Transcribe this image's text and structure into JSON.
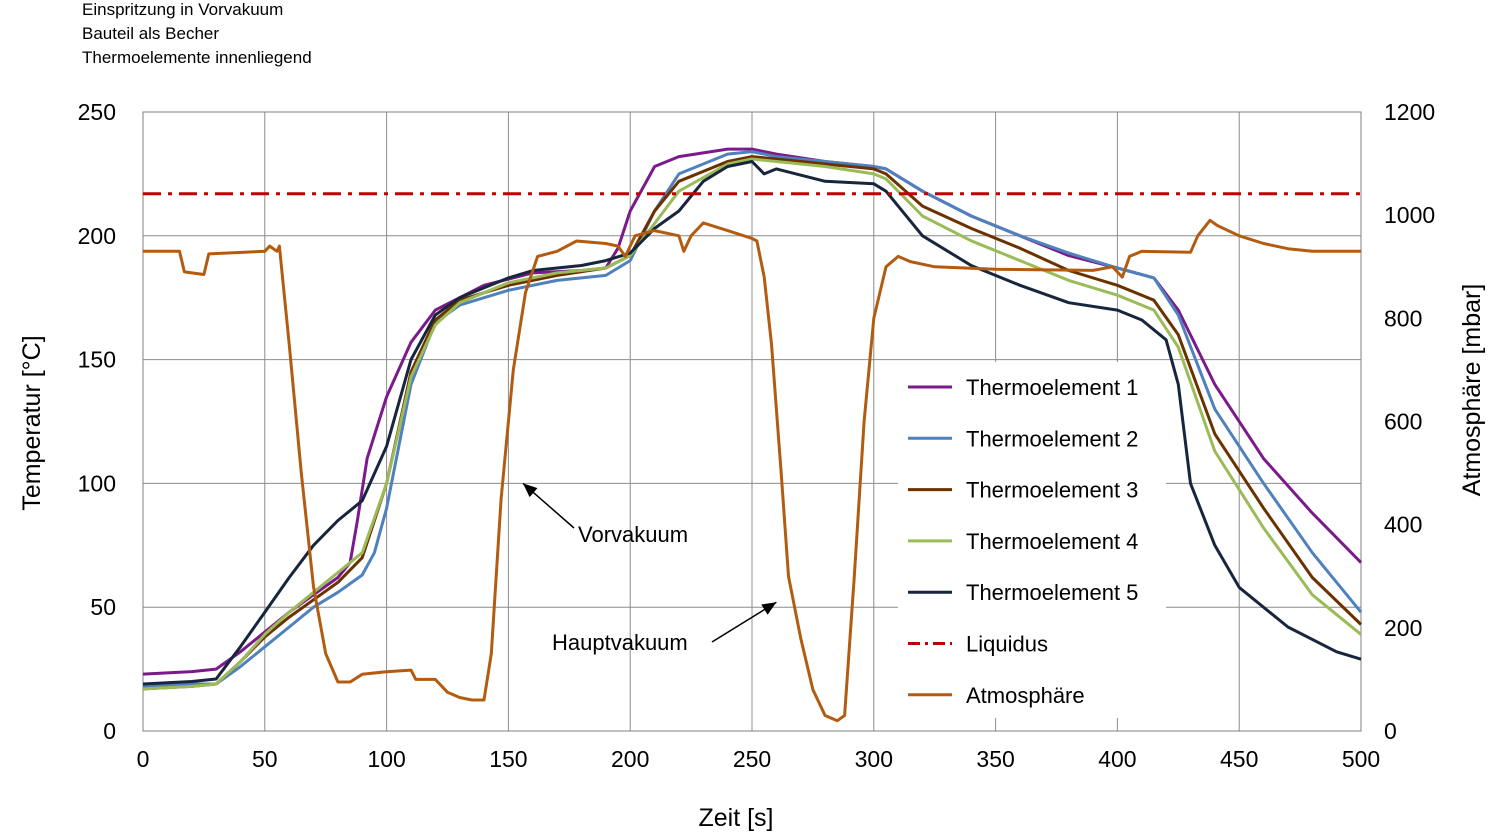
{
  "notes": [
    "Einspritzung in Vorvakuum",
    "Bauteil als Becher",
    "Thermoelemente innenliegend"
  ],
  "chart_data": {
    "type": "line",
    "xlabel": "Zeit [s]",
    "ylabel": "Temperatur [°C]",
    "y2label": "Atmosphäre [mbar]",
    "xlim": [
      0,
      500
    ],
    "ylim": [
      0,
      250
    ],
    "y2lim": [
      0,
      1200
    ],
    "xticks": [
      0,
      50,
      100,
      150,
      200,
      250,
      300,
      350,
      400,
      450,
      500
    ],
    "yticks": [
      0,
      50,
      100,
      150,
      200,
      250
    ],
    "y2ticks": [
      0,
      200,
      400,
      600,
      800,
      1000,
      1200
    ],
    "grid": true,
    "legend_position": "right",
    "series": [
      {
        "name": "Thermoelement 1",
        "color": "#7b1a8a",
        "axis": "left",
        "style": "solid",
        "points": [
          [
            0,
            23
          ],
          [
            20,
            24
          ],
          [
            30,
            25
          ],
          [
            40,
            32
          ],
          [
            50,
            40
          ],
          [
            60,
            48
          ],
          [
            70,
            55
          ],
          [
            80,
            62
          ],
          [
            85,
            68
          ],
          [
            88,
            85
          ],
          [
            92,
            110
          ],
          [
            100,
            135
          ],
          [
            110,
            157
          ],
          [
            120,
            170
          ],
          [
            140,
            180
          ],
          [
            160,
            185
          ],
          [
            180,
            186
          ],
          [
            190,
            187
          ],
          [
            195,
            195
          ],
          [
            200,
            210
          ],
          [
            210,
            228
          ],
          [
            220,
            232
          ],
          [
            240,
            235
          ],
          [
            250,
            235
          ],
          [
            260,
            233
          ],
          [
            280,
            230
          ],
          [
            300,
            228
          ],
          [
            305,
            227
          ],
          [
            320,
            218
          ],
          [
            340,
            208
          ],
          [
            360,
            200
          ],
          [
            380,
            192
          ],
          [
            400,
            187
          ],
          [
            415,
            183
          ],
          [
            425,
            170
          ],
          [
            440,
            140
          ],
          [
            460,
            110
          ],
          [
            480,
            88
          ],
          [
            500,
            68
          ]
        ]
      },
      {
        "name": "Thermoelement 2",
        "color": "#4f81bd",
        "axis": "left",
        "style": "solid",
        "points": [
          [
            0,
            18
          ],
          [
            20,
            19
          ],
          [
            30,
            19
          ],
          [
            40,
            26
          ],
          [
            50,
            34
          ],
          [
            60,
            42
          ],
          [
            70,
            50
          ],
          [
            80,
            56
          ],
          [
            90,
            63
          ],
          [
            95,
            72
          ],
          [
            100,
            90
          ],
          [
            110,
            140
          ],
          [
            120,
            165
          ],
          [
            130,
            172
          ],
          [
            150,
            178
          ],
          [
            170,
            182
          ],
          [
            190,
            184
          ],
          [
            200,
            190
          ],
          [
            210,
            210
          ],
          [
            220,
            225
          ],
          [
            240,
            233
          ],
          [
            250,
            234
          ],
          [
            260,
            232
          ],
          [
            280,
            230
          ],
          [
            300,
            228
          ],
          [
            305,
            227
          ],
          [
            320,
            218
          ],
          [
            340,
            208
          ],
          [
            360,
            200
          ],
          [
            380,
            193
          ],
          [
            400,
            187
          ],
          [
            415,
            183
          ],
          [
            425,
            168
          ],
          [
            440,
            130
          ],
          [
            460,
            100
          ],
          [
            480,
            72
          ],
          [
            500,
            48
          ]
        ]
      },
      {
        "name": "Thermoelement 3",
        "color": "#6b3200",
        "axis": "left",
        "style": "solid",
        "points": [
          [
            0,
            17
          ],
          [
            20,
            18
          ],
          [
            30,
            19
          ],
          [
            40,
            28
          ],
          [
            50,
            38
          ],
          [
            60,
            46
          ],
          [
            70,
            53
          ],
          [
            80,
            60
          ],
          [
            90,
            70
          ],
          [
            100,
            100
          ],
          [
            110,
            145
          ],
          [
            120,
            166
          ],
          [
            130,
            174
          ],
          [
            150,
            180
          ],
          [
            170,
            184
          ],
          [
            190,
            187
          ],
          [
            200,
            192
          ],
          [
            210,
            210
          ],
          [
            220,
            222
          ],
          [
            240,
            230
          ],
          [
            250,
            232
          ],
          [
            260,
            231
          ],
          [
            280,
            229
          ],
          [
            300,
            227
          ],
          [
            305,
            225
          ],
          [
            320,
            212
          ],
          [
            340,
            203
          ],
          [
            360,
            195
          ],
          [
            380,
            186
          ],
          [
            400,
            180
          ],
          [
            415,
            174
          ],
          [
            425,
            160
          ],
          [
            440,
            120
          ],
          [
            460,
            90
          ],
          [
            480,
            62
          ],
          [
            500,
            43
          ]
        ]
      },
      {
        "name": "Thermoelement 4",
        "color": "#9bbb59",
        "axis": "left",
        "style": "solid",
        "points": [
          [
            0,
            17
          ],
          [
            20,
            18
          ],
          [
            30,
            19
          ],
          [
            40,
            28
          ],
          [
            50,
            39
          ],
          [
            60,
            48
          ],
          [
            70,
            56
          ],
          [
            80,
            64
          ],
          [
            90,
            72
          ],
          [
            100,
            100
          ],
          [
            110,
            143
          ],
          [
            120,
            164
          ],
          [
            130,
            173
          ],
          [
            150,
            181
          ],
          [
            170,
            185
          ],
          [
            190,
            187
          ],
          [
            200,
            192
          ],
          [
            210,
            205
          ],
          [
            220,
            218
          ],
          [
            240,
            229
          ],
          [
            250,
            231
          ],
          [
            260,
            230
          ],
          [
            280,
            228
          ],
          [
            300,
            225
          ],
          [
            305,
            223
          ],
          [
            320,
            208
          ],
          [
            340,
            198
          ],
          [
            360,
            190
          ],
          [
            380,
            182
          ],
          [
            400,
            176
          ],
          [
            415,
            170
          ],
          [
            425,
            155
          ],
          [
            440,
            113
          ],
          [
            460,
            82
          ],
          [
            480,
            55
          ],
          [
            500,
            39
          ]
        ]
      },
      {
        "name": "Thermoelement 5",
        "color": "#17263c",
        "axis": "left",
        "style": "solid",
        "points": [
          [
            0,
            19
          ],
          [
            20,
            20
          ],
          [
            30,
            21
          ],
          [
            40,
            34
          ],
          [
            50,
            48
          ],
          [
            60,
            62
          ],
          [
            70,
            75
          ],
          [
            80,
            85
          ],
          [
            90,
            93
          ],
          [
            100,
            115
          ],
          [
            110,
            150
          ],
          [
            120,
            168
          ],
          [
            130,
            175
          ],
          [
            150,
            183
          ],
          [
            160,
            186
          ],
          [
            180,
            188
          ],
          [
            190,
            190
          ],
          [
            200,
            193
          ],
          [
            210,
            203
          ],
          [
            220,
            210
          ],
          [
            230,
            222
          ],
          [
            240,
            228
          ],
          [
            250,
            230
          ],
          [
            255,
            225
          ],
          [
            260,
            227
          ],
          [
            280,
            222
          ],
          [
            300,
            221
          ],
          [
            305,
            218
          ],
          [
            320,
            200
          ],
          [
            340,
            188
          ],
          [
            360,
            180
          ],
          [
            380,
            173
          ],
          [
            400,
            170
          ],
          [
            410,
            166
          ],
          [
            420,
            158
          ],
          [
            425,
            140
          ],
          [
            430,
            100
          ],
          [
            440,
            75
          ],
          [
            450,
            58
          ],
          [
            470,
            42
          ],
          [
            490,
            32
          ],
          [
            500,
            29
          ]
        ]
      },
      {
        "name": "Liquidus",
        "color": "#c00000",
        "axis": "left",
        "style": "dashdot",
        "points": [
          [
            0,
            217
          ],
          [
            500,
            217
          ]
        ]
      },
      {
        "name": "Atmosphäre",
        "color": "#b35c11",
        "axis": "right",
        "style": "solid",
        "points": [
          [
            0,
            930
          ],
          [
            15,
            930
          ],
          [
            17,
            890
          ],
          [
            25,
            885
          ],
          [
            27,
            925
          ],
          [
            50,
            930
          ],
          [
            52,
            940
          ],
          [
            55,
            930
          ],
          [
            56,
            940
          ],
          [
            60,
            750
          ],
          [
            65,
            500
          ],
          [
            70,
            280
          ],
          [
            75,
            150
          ],
          [
            80,
            95
          ],
          [
            85,
            95
          ],
          [
            90,
            110
          ],
          [
            100,
            115
          ],
          [
            110,
            118
          ],
          [
            112,
            100
          ],
          [
            120,
            100
          ],
          [
            125,
            75
          ],
          [
            130,
            65
          ],
          [
            135,
            60
          ],
          [
            140,
            60
          ],
          [
            143,
            150
          ],
          [
            147,
            450
          ],
          [
            152,
            700
          ],
          [
            157,
            850
          ],
          [
            162,
            920
          ],
          [
            170,
            930
          ],
          [
            178,
            950
          ],
          [
            190,
            945
          ],
          [
            195,
            940
          ],
          [
            198,
            920
          ],
          [
            202,
            960
          ],
          [
            210,
            970
          ],
          [
            220,
            960
          ],
          [
            222,
            930
          ],
          [
            225,
            960
          ],
          [
            230,
            985
          ],
          [
            240,
            970
          ],
          [
            250,
            955
          ],
          [
            252,
            950
          ],
          [
            255,
            880
          ],
          [
            258,
            750
          ],
          [
            262,
            500
          ],
          [
            265,
            300
          ],
          [
            270,
            180
          ],
          [
            275,
            80
          ],
          [
            280,
            30
          ],
          [
            285,
            20
          ],
          [
            288,
            30
          ],
          [
            292,
            300
          ],
          [
            296,
            600
          ],
          [
            300,
            800
          ],
          [
            305,
            900
          ],
          [
            310,
            920
          ],
          [
            315,
            910
          ],
          [
            325,
            900
          ],
          [
            350,
            895
          ],
          [
            390,
            893
          ],
          [
            398,
            900
          ],
          [
            402,
            880
          ],
          [
            405,
            920
          ],
          [
            410,
            930
          ],
          [
            430,
            928
          ],
          [
            433,
            960
          ],
          [
            438,
            990
          ],
          [
            441,
            980
          ],
          [
            450,
            960
          ],
          [
            460,
            945
          ],
          [
            470,
            935
          ],
          [
            480,
            930
          ],
          [
            500,
            930
          ]
        ]
      }
    ],
    "annotations": [
      {
        "text": "Vorvakuum",
        "target": [
          156,
          100
        ]
      },
      {
        "text": "Hauptvakuum",
        "target": [
          260,
          52
        ]
      }
    ]
  }
}
